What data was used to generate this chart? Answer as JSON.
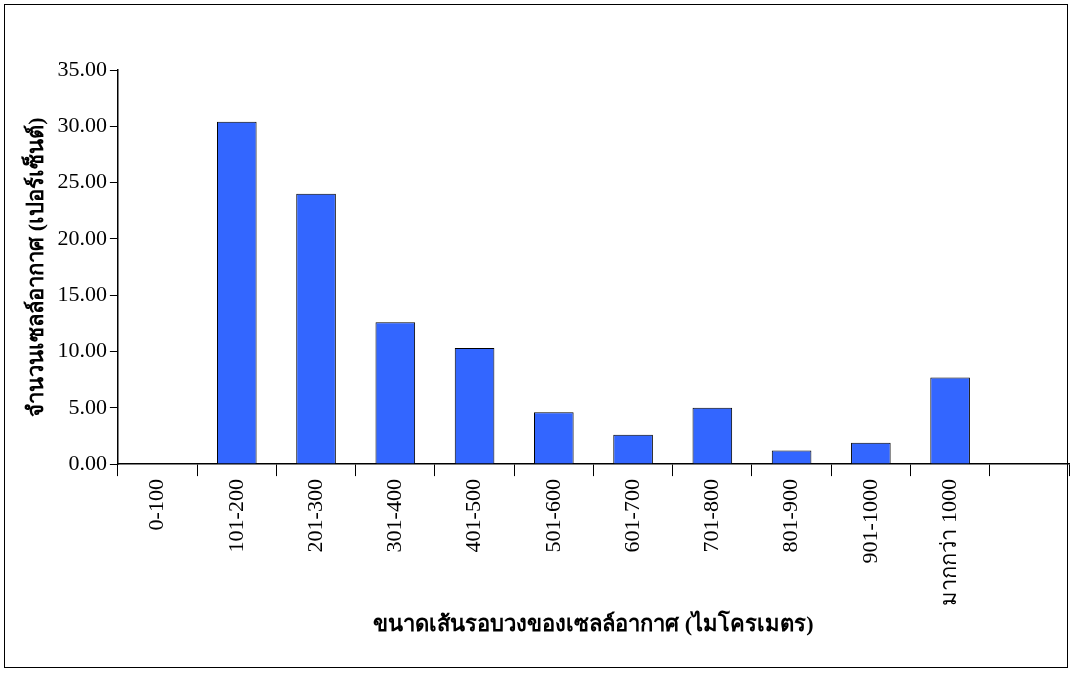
{
  "chart_data": {
    "type": "bar",
    "categories": [
      "0-100",
      "101-200",
      "201-300",
      "301-400",
      "401-500",
      "501-600",
      "601-700",
      "701-800",
      "801-900",
      "901-1000",
      "มากกว่า 1000",
      null
    ],
    "values": [
      0,
      30.4,
      24.0,
      12.6,
      10.3,
      4.6,
      2.6,
      5.0,
      1.2,
      1.9,
      7.7,
      0
    ],
    "color": "#3366ff",
    "xlabel": "ขนาดเส้นรอบวงของเซลล์อากาศ (ไมโครเมตร)",
    "ylabel": "จำนวนเซลล์อากาศ (เปอร์เซ็นต์)",
    "ylim": [
      0,
      35
    ],
    "yticks": [
      {
        "value": 0,
        "label": "0.00"
      },
      {
        "value": 5,
        "label": "5.00"
      },
      {
        "value": 10,
        "label": "10.00"
      },
      {
        "value": 15,
        "label": "15.00"
      },
      {
        "value": 20,
        "label": "20.00"
      },
      {
        "value": 25,
        "label": "25.00"
      },
      {
        "value": 30,
        "label": "30.00"
      },
      {
        "value": 35,
        "label": "35.00"
      }
    ],
    "grid": false,
    "legend": false
  }
}
